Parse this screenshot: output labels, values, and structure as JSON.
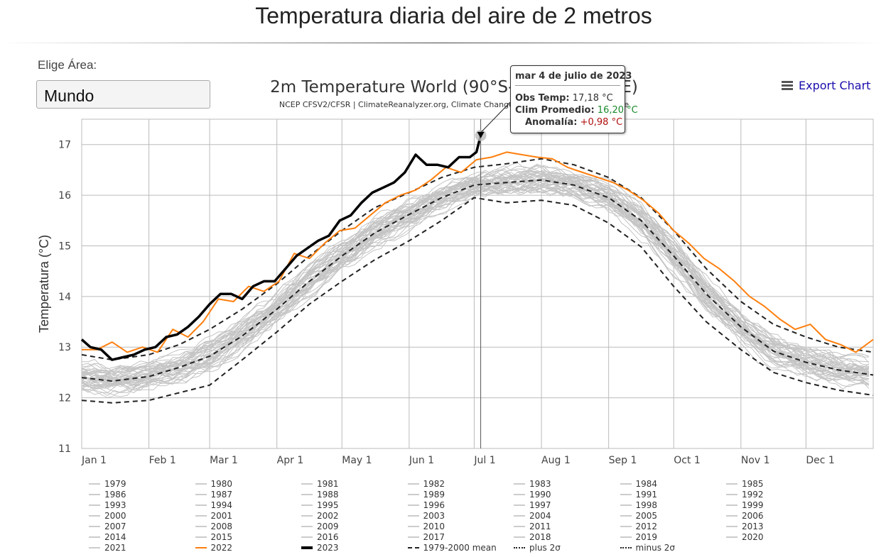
{
  "page_title": "Temperatura diaria del aire de 2 metros",
  "area": {
    "label": "Elige Área:",
    "selected": "Mundo"
  },
  "export_label": "Export Chart",
  "tooltip": {
    "date": "mar 4 de julio de 2023",
    "obs_label": "Obs Temp:",
    "obs_value": "17,18 °C",
    "clim_label": "Clim Promedio:",
    "clim_value": "16,20 °C",
    "anom_label": "Anomalía:",
    "anom_value": "+0,98 °C",
    "colors": {
      "clim": "#1a8a2a",
      "anom": "#b01010"
    }
  },
  "chart_data": {
    "type": "line",
    "title": "2m Temperature World (90°S-90°N, 0-360°E)",
    "subtitle": "NCEP CFSV2/CFSR | ClimateReanalyzer.org, Climate Change Institute, University of Maine",
    "xlabel": "",
    "ylabel": "Temperatura (°C)",
    "ylim": [
      11,
      17.5
    ],
    "yticks": [
      11,
      12,
      13,
      14,
      15,
      16,
      17
    ],
    "xlim": [
      1,
      366
    ],
    "xticks": [
      {
        "label": "Jan 1",
        "day": 1
      },
      {
        "label": "Feb 1",
        "day": 32
      },
      {
        "label": "Mar 1",
        "day": 60
      },
      {
        "label": "Apr 1",
        "day": 91
      },
      {
        "label": "May 1",
        "day": 121
      },
      {
        "label": "Jun 1",
        "day": 152
      },
      {
        "label": "Jul 1",
        "day": 182
      },
      {
        "label": "Aug 1",
        "day": 213
      },
      {
        "label": "Sep 1",
        "day": 244
      },
      {
        "label": "Oct 1",
        "day": 274
      },
      {
        "label": "Nov 1",
        "day": 305
      },
      {
        "label": "Dec 1",
        "day": 335
      }
    ],
    "grid": true,
    "highlight": {
      "day": 185,
      "value": 17.18
    },
    "series": [
      {
        "name": "1979-2000 mean",
        "style": "dash",
        "color": "#222222",
        "x": [
          1,
          15,
          32,
          46,
          60,
          75,
          91,
          106,
          121,
          136,
          152,
          167,
          182,
          197,
          213,
          228,
          244,
          259,
          274,
          289,
          305,
          320,
          335,
          350,
          366
        ],
        "y": [
          12.4,
          12.33,
          12.42,
          12.6,
          12.82,
          13.22,
          13.75,
          14.3,
          14.8,
          15.25,
          15.62,
          15.95,
          16.2,
          16.25,
          16.3,
          16.2,
          15.95,
          15.5,
          14.8,
          14.05,
          13.4,
          12.92,
          12.7,
          12.55,
          12.45
        ]
      },
      {
        "name": "plus 2σ",
        "style": "dash",
        "color": "#222222",
        "x": [
          1,
          15,
          32,
          46,
          60,
          75,
          91,
          106,
          121,
          136,
          152,
          167,
          182,
          197,
          213,
          228,
          244,
          259,
          274,
          289,
          305,
          320,
          335,
          350,
          366
        ],
        "y": [
          12.85,
          12.75,
          12.85,
          13.05,
          13.35,
          13.75,
          14.25,
          14.8,
          15.3,
          15.75,
          16.05,
          16.35,
          16.55,
          16.62,
          16.72,
          16.6,
          16.35,
          15.95,
          15.3,
          14.55,
          13.9,
          13.45,
          13.2,
          13.0,
          12.9
        ]
      },
      {
        "name": "minus 2σ",
        "style": "dash",
        "color": "#222222",
        "x": [
          1,
          15,
          32,
          46,
          60,
          75,
          91,
          106,
          121,
          136,
          152,
          167,
          182,
          197,
          213,
          228,
          244,
          259,
          274,
          289,
          305,
          320,
          335,
          350,
          366
        ],
        "y": [
          11.95,
          11.9,
          11.95,
          12.1,
          12.25,
          12.75,
          13.3,
          13.85,
          14.3,
          14.72,
          15.1,
          15.5,
          15.95,
          15.85,
          15.9,
          15.8,
          15.45,
          14.98,
          14.2,
          13.5,
          12.95,
          12.5,
          12.3,
          12.15,
          12.05
        ]
      },
      {
        "name": "2022",
        "style": "solid",
        "color": "#ff7f0e",
        "x": [
          1,
          8,
          15,
          22,
          29,
          36,
          43,
          50,
          57,
          64,
          71,
          78,
          85,
          92,
          99,
          106,
          113,
          120,
          127,
          134,
          141,
          148,
          155,
          162,
          169,
          176,
          183,
          190,
          197,
          204,
          211,
          218,
          225,
          232,
          239,
          246,
          253,
          260,
          267,
          274,
          281,
          288,
          295,
          302,
          309,
          316,
          323,
          330,
          337,
          344,
          351,
          358,
          366
        ],
        "y": [
          12.95,
          12.95,
          13.1,
          12.9,
          13.0,
          12.9,
          13.35,
          13.2,
          13.5,
          13.95,
          13.9,
          14.2,
          14.1,
          14.3,
          14.85,
          14.75,
          15.05,
          15.3,
          15.35,
          15.6,
          15.85,
          16.0,
          16.1,
          16.3,
          16.55,
          16.45,
          16.7,
          16.75,
          16.85,
          16.8,
          16.75,
          16.72,
          16.55,
          16.45,
          16.35,
          16.25,
          16.1,
          15.9,
          15.65,
          15.3,
          15.05,
          14.75,
          14.55,
          14.3,
          14.0,
          13.8,
          13.55,
          13.35,
          13.45,
          13.15,
          13.05,
          12.9,
          13.15
        ]
      },
      {
        "name": "2023",
        "style": "bold",
        "color": "#000000",
        "x": [
          1,
          5,
          10,
          15,
          20,
          25,
          30,
          35,
          40,
          45,
          50,
          55,
          60,
          65,
          70,
          75,
          80,
          85,
          90,
          95,
          100,
          105,
          110,
          115,
          120,
          125,
          130,
          135,
          140,
          145,
          150,
          155,
          160,
          165,
          170,
          175,
          180,
          183,
          185
        ],
        "y": [
          13.15,
          13.0,
          12.95,
          12.75,
          12.8,
          12.85,
          12.95,
          13.0,
          13.2,
          13.25,
          13.4,
          13.6,
          13.85,
          14.05,
          14.05,
          13.95,
          14.2,
          14.3,
          14.3,
          14.55,
          14.8,
          14.95,
          15.1,
          15.2,
          15.5,
          15.6,
          15.85,
          16.05,
          16.15,
          16.25,
          16.45,
          16.8,
          16.6,
          16.6,
          16.55,
          16.75,
          16.75,
          16.85,
          17.18
        ]
      }
    ],
    "grey_years_note": "1979-2021 individual years drawn as thin grey lines",
    "legend": {
      "placement": "bottom",
      "items": [
        "1979",
        "1980",
        "1981",
        "1982",
        "1983",
        "1984",
        "1985",
        "1986",
        "1987",
        "1988",
        "1989",
        "1990",
        "1991",
        "1992",
        "1993",
        "1994",
        "1995",
        "1996",
        "1997",
        "1998",
        "1999",
        "2000",
        "2001",
        "2002",
        "2003",
        "2004",
        "2005",
        "2006",
        "2007",
        "2008",
        "2009",
        "2010",
        "2011",
        "2012",
        "2013",
        "2014",
        "2015",
        "2016",
        "2017",
        "2018",
        "2019",
        "2020",
        "2021",
        "2022",
        "2023",
        "1979-2000 mean",
        "plus 2σ",
        "minus 2σ"
      ]
    }
  }
}
